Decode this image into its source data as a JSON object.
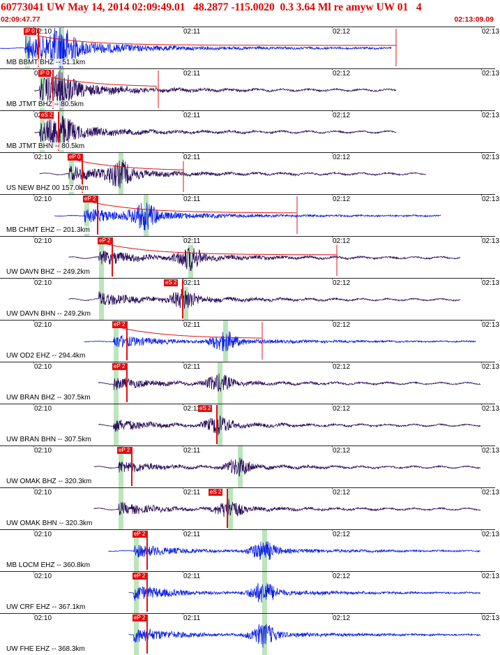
{
  "header": {
    "title": "60773041 UW May 14, 2014 02:09:49.01   48.2877 -115.0020  0.3 3.64 Ml re amyw UW 01   4",
    "start_time": "02:09:47.77",
    "end_time": "02:13:09.09"
  },
  "colors": {
    "trace_blue": "#0a1ee6",
    "trace_purple": "#2a0e5c",
    "pick_red": "#e01010",
    "phase_green": "#96d796"
  },
  "time_ticks": [
    "02:10",
    "02:11",
    "02:12",
    "02:13"
  ],
  "traces": [
    {
      "station": "MB BBMT BHZ -- 51.1km",
      "pick": "iP 0",
      "color": "blue",
      "start": 0.0,
      "end": 0.79,
      "onset": 0.05,
      "burst": 0.12,
      "amp": 0.9,
      "s_pick": null,
      "coda_end": 0.8
    },
    {
      "station": "MB JTMT BHZ -- 80.5km",
      "pick": "iP 0",
      "color": "purple",
      "start": 0.07,
      "end": 0.8,
      "onset": 0.08,
      "burst": 0.12,
      "amp": 0.7,
      "s_pick": null,
      "coda_end": 0.32
    },
    {
      "station": "MB JTMT BHN -- 80.5km",
      "pick": "eS 2",
      "color": "purple",
      "start": 0.07,
      "end": 0.8,
      "onset": 0.08,
      "burst": 0.12,
      "amp": 0.6,
      "s_pick": "eS 2",
      "coda_end": null
    },
    {
      "station": "US NEW BHZ 00 157.0km",
      "pick": "eP 0",
      "color": "purple",
      "start": 0.08,
      "end": 0.86,
      "onset": 0.14,
      "burst": 0.24,
      "amp": 0.55,
      "s_pick": null,
      "coda_end": 0.37
    },
    {
      "station": "MB CHMT EHZ -- 201.3km",
      "pick": "eP 2",
      "color": "blue",
      "start": 0.11,
      "end": 0.89,
      "onset": 0.17,
      "burst": 0.29,
      "amp": 0.6,
      "s_pick": null,
      "coda_end": 0.6
    },
    {
      "station": "UW DAVN BHZ -- 249.2km",
      "pick": "eP 2",
      "color": "purple",
      "start": 0.14,
      "end": 0.93,
      "onset": 0.2,
      "burst": 0.38,
      "amp": 0.55,
      "s_pick": null,
      "coda_end": 0.68
    },
    {
      "station": "UW DAVN BHN -- 249.2km",
      "pick": "eS 2",
      "color": "purple",
      "start": 0.14,
      "end": 0.93,
      "onset": 0.2,
      "burst": 0.37,
      "amp": 0.5,
      "s_pick": "eS 2",
      "coda_end": null
    },
    {
      "station": "UW OD2 EHZ -- 294.4km",
      "pick": "eP 2",
      "color": "blue",
      "start": 0.17,
      "end": 0.96,
      "onset": 0.23,
      "burst": 0.45,
      "amp": 0.5,
      "s_pick": null,
      "coda_end": 0.53
    },
    {
      "station": "UW BRAN BHZ -- 307.5km",
      "pick": "eP 2",
      "color": "purple",
      "start": 0.2,
      "end": 0.97,
      "onset": 0.23,
      "burst": 0.44,
      "amp": 0.45,
      "s_pick": null,
      "coda_end": null
    },
    {
      "station": "UW BRAN BHN -- 307.5km",
      "pick": "eS 2",
      "color": "purple",
      "start": 0.2,
      "end": 0.97,
      "onset": 0.23,
      "burst": 0.44,
      "amp": 0.45,
      "s_pick": "eS 2",
      "coda_end": null
    },
    {
      "station": "UW OMAK BHZ -- 320.3km",
      "pick": "eP 2",
      "color": "purple",
      "start": 0.19,
      "end": 0.97,
      "onset": 0.24,
      "burst": 0.48,
      "amp": 0.45,
      "s_pick": null,
      "coda_end": null
    },
    {
      "station": "UW OMAK BHN -- 320.3km",
      "pick": "eS 2",
      "color": "purple",
      "start": 0.19,
      "end": 0.97,
      "onset": 0.24,
      "burst": 0.46,
      "amp": 0.45,
      "s_pick": "eS 2",
      "coda_end": null
    },
    {
      "station": "MB LOCM EHZ -- 360.8km",
      "pick": "eP 2",
      "color": "blue",
      "start": 0.22,
      "end": 0.97,
      "onset": 0.27,
      "burst": 0.53,
      "amp": 0.5,
      "s_pick": null,
      "coda_end": null
    },
    {
      "station": "UW CRF EHZ -- 367.1km",
      "pick": "eP 2",
      "color": "blue",
      "start": 0.26,
      "end": 0.97,
      "onset": 0.27,
      "burst": 0.53,
      "amp": 0.55,
      "s_pick": null,
      "coda_end": null
    },
    {
      "station": "UW FHE EHZ -- 368.3km",
      "pick": "eP 2",
      "color": "blue",
      "start": 0.26,
      "end": 0.97,
      "onset": 0.27,
      "burst": 0.53,
      "amp": 0.55,
      "s_pick": null,
      "coda_end": null
    }
  ]
}
